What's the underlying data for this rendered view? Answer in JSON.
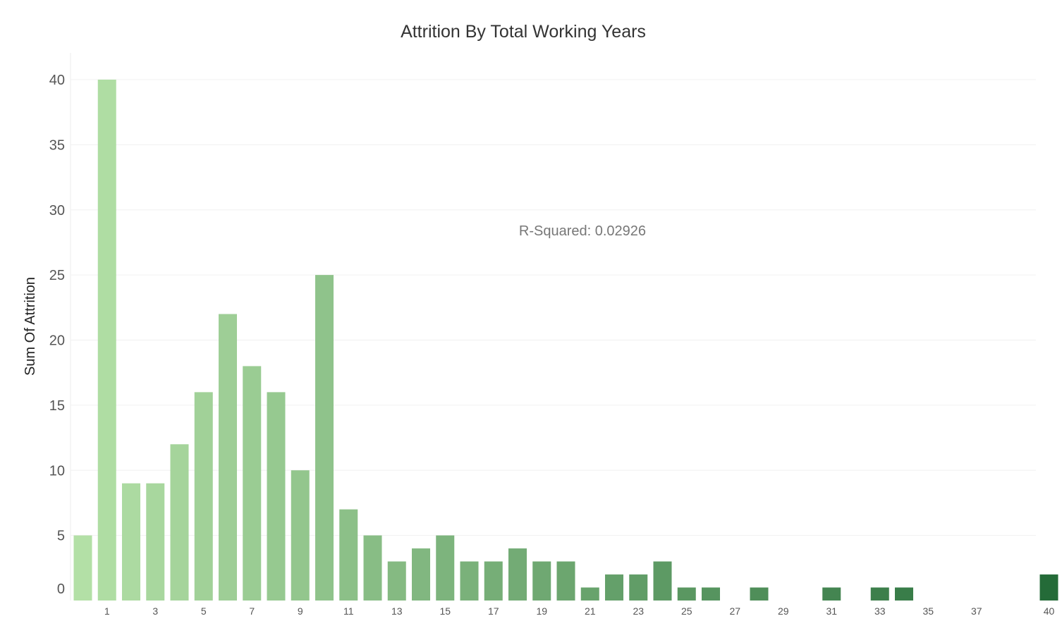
{
  "chart_data": {
    "type": "bar",
    "title": "Attrition By Total Working Years",
    "xlabel": "",
    "ylabel": "Sum Of Attrition",
    "annotation": "R-Squared: 0.02926",
    "ylim": [
      0,
      40
    ],
    "y_ticks": [
      {
        "value": 0,
        "label": "0"
      },
      {
        "value": 5,
        "label": "5"
      },
      {
        "value": 10,
        "label": "10"
      },
      {
        "value": 15,
        "label": "15"
      },
      {
        "value": 20,
        "label": "20"
      },
      {
        "value": 25,
        "label": "25"
      },
      {
        "value": 30,
        "label": "30"
      },
      {
        "value": 35,
        "label": "35"
      },
      {
        "value": 40,
        "label": "40"
      }
    ],
    "x_tick_labels": [
      "1",
      "3",
      "5",
      "7",
      "9",
      "11",
      "13",
      "15",
      "17",
      "19",
      "21",
      "23",
      "25",
      "27",
      "29",
      "31",
      "33",
      "35",
      "37",
      "40"
    ],
    "categories": [
      0,
      1,
      2,
      3,
      4,
      5,
      6,
      7,
      8,
      9,
      10,
      11,
      12,
      13,
      14,
      15,
      16,
      17,
      18,
      19,
      20,
      21,
      22,
      23,
      24,
      25,
      26,
      27,
      28,
      29,
      30,
      31,
      32,
      33,
      34,
      35,
      36,
      37,
      38,
      40
    ],
    "values": [
      5,
      40,
      9,
      9,
      12,
      16,
      22,
      18,
      16,
      10,
      25,
      7,
      5,
      3,
      4,
      5,
      3,
      3,
      4,
      3,
      3,
      1,
      2,
      2,
      3,
      1,
      1,
      0,
      1,
      0,
      0,
      1,
      0,
      1,
      1,
      0,
      0,
      0,
      0,
      2
    ],
    "grid": true,
    "legend": "none",
    "color_scale": [
      "#b3e0a6",
      "#246b38"
    ]
  }
}
